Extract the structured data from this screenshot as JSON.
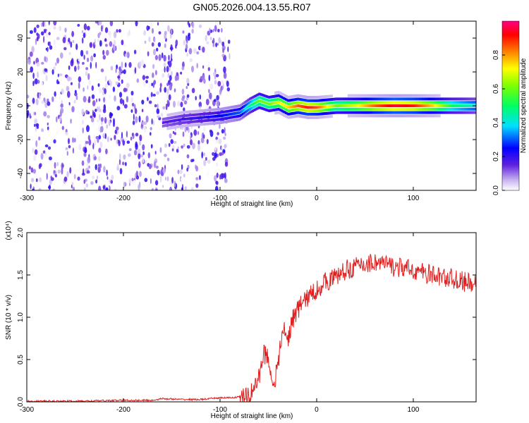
{
  "title": "GN05.2026.004.13.55.R07",
  "colors": {
    "snr_line": "#e02020",
    "spectrogram_low": "#c8b4f0",
    "spectrogram_mid": "#6020e0",
    "frame": "#000000"
  },
  "chart_data": [
    {
      "type": "heatmap",
      "name": "spectrogram",
      "xlabel": "Height of straight line (km)",
      "ylabel": "Frequency (Hz)",
      "xlim": [
        -300,
        165
      ],
      "ylim": [
        -50,
        50
      ],
      "xticks": [
        -300,
        -200,
        -100,
        0,
        100
      ],
      "xtick_labels": [
        "-300",
        "-200",
        "-100",
        "0",
        "100"
      ],
      "yticks": [
        -40,
        -20,
        0,
        20,
        40
      ],
      "ytick_labels": [
        "-40",
        "-20",
        "0",
        "20",
        "40"
      ],
      "colorbar": {
        "label": "Normalized spectral amplitude",
        "range": [
          0,
          1
        ],
        "ticks": [
          0.0,
          0.2,
          0.4,
          0.6,
          0.8
        ],
        "tick_labels": [
          "0.0",
          "0.2",
          "0.4",
          "0.6",
          "0.8"
        ]
      },
      "ridge": {
        "x": [
          -160,
          -140,
          -120,
          -100,
          -80,
          -70,
          -60,
          -50,
          -40,
          -30,
          -20,
          -10,
          0,
          20,
          40,
          60,
          80,
          100,
          120,
          140,
          165
        ],
        "freq": [
          -10,
          -8,
          -7,
          -6,
          -4,
          0,
          3,
          1,
          2,
          -1,
          0,
          -1,
          -1,
          0,
          0,
          0,
          0,
          0,
          0,
          0,
          0
        ],
        "amplitude": [
          0.15,
          0.18,
          0.2,
          0.25,
          0.3,
          0.45,
          0.6,
          0.6,
          0.7,
          0.75,
          0.85,
          0.9,
          0.85,
          0.6,
          0.7,
          0.85,
          0.95,
          0.9,
          0.75,
          0.5,
          0.4
        ]
      }
    },
    {
      "type": "line",
      "name": "snr",
      "xlabel": "Height of straight line (km)",
      "ylabel": "SNR (10 * v/v)",
      "scale_label": "(x10⁴)",
      "xlim": [
        -300,
        165
      ],
      "ylim": [
        0,
        2.0
      ],
      "xticks": [
        -300,
        -200,
        -100,
        0,
        100
      ],
      "xtick_labels": [
        "-300",
        "-200",
        "-100",
        "0",
        "100"
      ],
      "yticks": [
        0.0,
        0.5,
        1.0,
        1.5,
        2.0
      ],
      "ytick_labels": [
        "0.0",
        "0.5",
        "1.0",
        "1.5",
        "2.0"
      ],
      "series": [
        {
          "name": "SNR",
          "x": [
            -300,
            -250,
            -200,
            -170,
            -160,
            -140,
            -120,
            -100,
            -90,
            -80,
            -70,
            -60,
            -55,
            -50,
            -45,
            -40,
            -35,
            -30,
            -25,
            -20,
            -15,
            -10,
            -5,
            0,
            10,
            20,
            30,
            40,
            50,
            60,
            70,
            80,
            90,
            100,
            110,
            120,
            130,
            140,
            150,
            160,
            165
          ],
          "y": [
            0.01,
            0.01,
            0.02,
            0.02,
            0.04,
            0.03,
            0.03,
            0.05,
            0.05,
            0.06,
            0.08,
            0.3,
            0.6,
            0.55,
            0.2,
            0.45,
            0.9,
            0.75,
            1.0,
            1.1,
            1.2,
            1.25,
            1.3,
            1.35,
            1.45,
            1.5,
            1.58,
            1.62,
            1.65,
            1.68,
            1.65,
            1.62,
            1.6,
            1.58,
            1.55,
            1.52,
            1.5,
            1.48,
            1.45,
            1.42,
            1.4
          ]
        }
      ]
    }
  ]
}
